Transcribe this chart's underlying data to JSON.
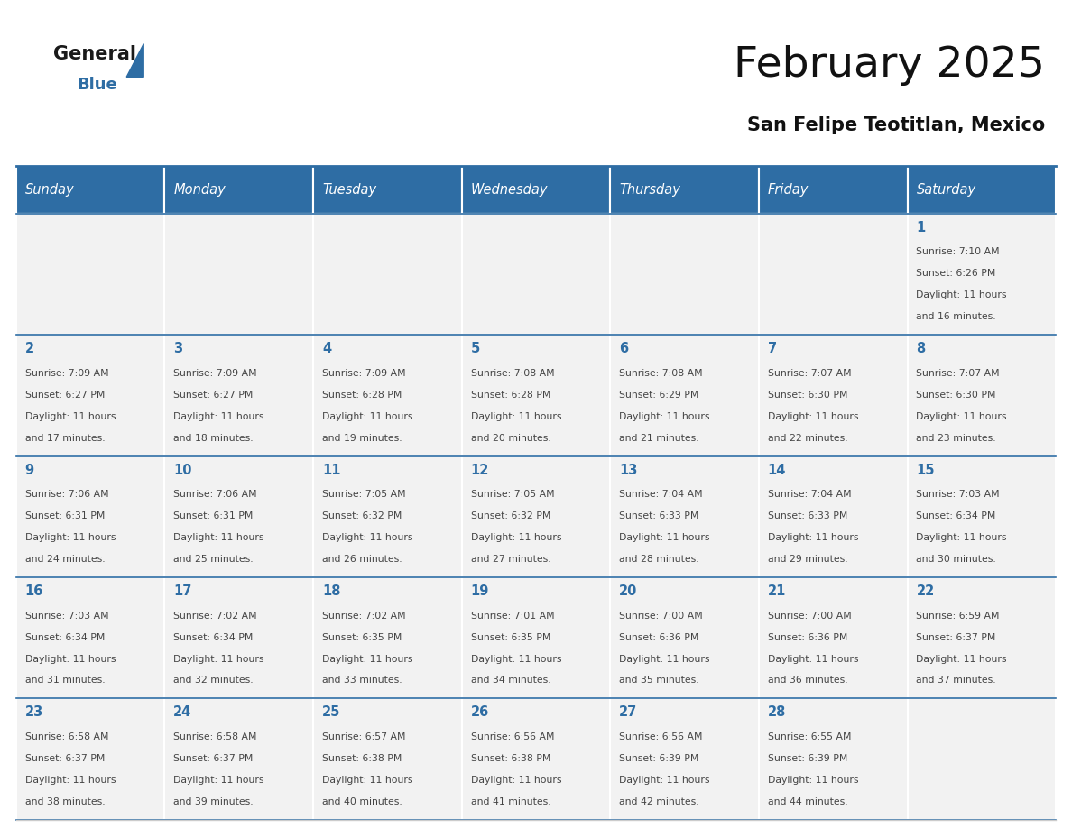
{
  "title": "February 2025",
  "subtitle": "San Felipe Teotitlan, Mexico",
  "days_of_week": [
    "Sunday",
    "Monday",
    "Tuesday",
    "Wednesday",
    "Thursday",
    "Friday",
    "Saturday"
  ],
  "header_bg": "#2E6DA4",
  "header_text": "#FFFFFF",
  "cell_bg": "#F2F2F2",
  "cell_border": "#FFFFFF",
  "day_num_color": "#2E6DA4",
  "text_color": "#444444",
  "logo_general_color": "#1A1A1A",
  "logo_blue_color": "#2E6DA4",
  "calendar": [
    [
      null,
      null,
      null,
      null,
      null,
      null,
      1
    ],
    [
      2,
      3,
      4,
      5,
      6,
      7,
      8
    ],
    [
      9,
      10,
      11,
      12,
      13,
      14,
      15
    ],
    [
      16,
      17,
      18,
      19,
      20,
      21,
      22
    ],
    [
      23,
      24,
      25,
      26,
      27,
      28,
      null
    ]
  ],
  "sun_data": {
    "1": {
      "sunrise": "7:10 AM",
      "sunset": "6:26 PM",
      "daylight": "11 hours and 16 minutes."
    },
    "2": {
      "sunrise": "7:09 AM",
      "sunset": "6:27 PM",
      "daylight": "11 hours and 17 minutes."
    },
    "3": {
      "sunrise": "7:09 AM",
      "sunset": "6:27 PM",
      "daylight": "11 hours and 18 minutes."
    },
    "4": {
      "sunrise": "7:09 AM",
      "sunset": "6:28 PM",
      "daylight": "11 hours and 19 minutes."
    },
    "5": {
      "sunrise": "7:08 AM",
      "sunset": "6:28 PM",
      "daylight": "11 hours and 20 minutes."
    },
    "6": {
      "sunrise": "7:08 AM",
      "sunset": "6:29 PM",
      "daylight": "11 hours and 21 minutes."
    },
    "7": {
      "sunrise": "7:07 AM",
      "sunset": "6:30 PM",
      "daylight": "11 hours and 22 minutes."
    },
    "8": {
      "sunrise": "7:07 AM",
      "sunset": "6:30 PM",
      "daylight": "11 hours and 23 minutes."
    },
    "9": {
      "sunrise": "7:06 AM",
      "sunset": "6:31 PM",
      "daylight": "11 hours and 24 minutes."
    },
    "10": {
      "sunrise": "7:06 AM",
      "sunset": "6:31 PM",
      "daylight": "11 hours and 25 minutes."
    },
    "11": {
      "sunrise": "7:05 AM",
      "sunset": "6:32 PM",
      "daylight": "11 hours and 26 minutes."
    },
    "12": {
      "sunrise": "7:05 AM",
      "sunset": "6:32 PM",
      "daylight": "11 hours and 27 minutes."
    },
    "13": {
      "sunrise": "7:04 AM",
      "sunset": "6:33 PM",
      "daylight": "11 hours and 28 minutes."
    },
    "14": {
      "sunrise": "7:04 AM",
      "sunset": "6:33 PM",
      "daylight": "11 hours and 29 minutes."
    },
    "15": {
      "sunrise": "7:03 AM",
      "sunset": "6:34 PM",
      "daylight": "11 hours and 30 minutes."
    },
    "16": {
      "sunrise": "7:03 AM",
      "sunset": "6:34 PM",
      "daylight": "11 hours and 31 minutes."
    },
    "17": {
      "sunrise": "7:02 AM",
      "sunset": "6:34 PM",
      "daylight": "11 hours and 32 minutes."
    },
    "18": {
      "sunrise": "7:02 AM",
      "sunset": "6:35 PM",
      "daylight": "11 hours and 33 minutes."
    },
    "19": {
      "sunrise": "7:01 AM",
      "sunset": "6:35 PM",
      "daylight": "11 hours and 34 minutes."
    },
    "20": {
      "sunrise": "7:00 AM",
      "sunset": "6:36 PM",
      "daylight": "11 hours and 35 minutes."
    },
    "21": {
      "sunrise": "7:00 AM",
      "sunset": "6:36 PM",
      "daylight": "11 hours and 36 minutes."
    },
    "22": {
      "sunrise": "6:59 AM",
      "sunset": "6:37 PM",
      "daylight": "11 hours and 37 minutes."
    },
    "23": {
      "sunrise": "6:58 AM",
      "sunset": "6:37 PM",
      "daylight": "11 hours and 38 minutes."
    },
    "24": {
      "sunrise": "6:58 AM",
      "sunset": "6:37 PM",
      "daylight": "11 hours and 39 minutes."
    },
    "25": {
      "sunrise": "6:57 AM",
      "sunset": "6:38 PM",
      "daylight": "11 hours and 40 minutes."
    },
    "26": {
      "sunrise": "6:56 AM",
      "sunset": "6:38 PM",
      "daylight": "11 hours and 41 minutes."
    },
    "27": {
      "sunrise": "6:56 AM",
      "sunset": "6:39 PM",
      "daylight": "11 hours and 42 minutes."
    },
    "28": {
      "sunrise": "6:55 AM",
      "sunset": "6:39 PM",
      "daylight": "11 hours and 44 minutes."
    }
  }
}
